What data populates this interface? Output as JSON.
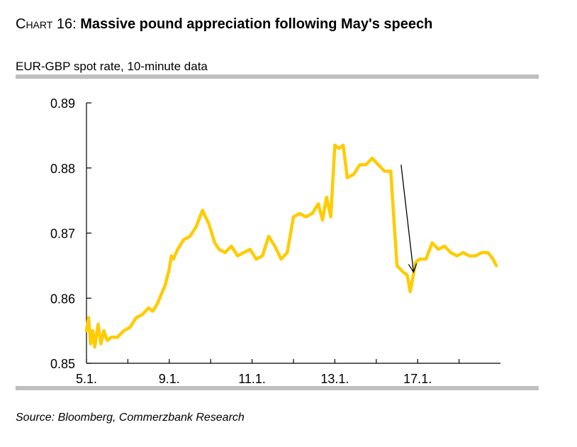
{
  "header": {
    "prefix": "Chart 16:",
    "title": "Massive pound appreciation following May's speech",
    "subtitle": "EUR-GBP spot rate, 10-minute data"
  },
  "footer": {
    "source": "Source: Bloomberg, Commerzbank Research"
  },
  "colors": {
    "series": "#FFCC00",
    "axis": "#000000",
    "rule": "#BFBFBF"
  },
  "chart_data": {
    "type": "line",
    "title": "Massive pound appreciation following May's speech",
    "subtitle": "EUR-GBP spot rate, 10-minute data",
    "xlabel": "",
    "ylabel": "",
    "ylim": [
      0.85,
      0.89
    ],
    "y_ticks": [
      0.85,
      0.86,
      0.87,
      0.88,
      0.89
    ],
    "y_tick_labels": [
      "0.85",
      "0.86",
      "0.87",
      "0.88",
      "0.89"
    ],
    "xlim": [
      0,
      10
    ],
    "x_ticks": [
      0,
      2,
      4,
      6,
      8
    ],
    "x_tick_labels": [
      "5.1.",
      "9.1.",
      "11.1.",
      "13.1.",
      "17.1."
    ],
    "grid": false,
    "legend": "none",
    "series": [
      {
        "name": "EUR-GBP",
        "x": [
          0,
          0.05,
          0.1,
          0.15,
          0.2,
          0.28,
          0.35,
          0.42,
          0.5,
          0.6,
          0.75,
          0.9,
          1.05,
          1.2,
          1.35,
          1.5,
          1.6,
          1.7,
          1.8,
          1.9,
          2.0,
          2.05,
          2.1,
          2.2,
          2.35,
          2.5,
          2.65,
          2.8,
          2.95,
          3.05,
          3.1,
          3.2,
          3.35,
          3.5,
          3.65,
          3.8,
          3.95,
          4.1,
          4.25,
          4.4,
          4.55,
          4.7,
          4.85,
          5.0,
          5.15,
          5.3,
          5.45,
          5.6,
          5.7,
          5.8,
          5.9,
          6.0,
          6.1,
          6.2,
          6.3,
          6.45,
          6.6,
          6.75,
          6.9,
          7.05,
          7.2,
          7.35,
          7.5,
          7.65,
          7.75,
          7.82,
          7.88,
          7.95,
          8.05,
          8.2,
          8.35,
          8.5,
          8.65,
          8.8,
          8.95,
          9.1,
          9.25,
          9.4,
          9.55,
          9.7,
          9.82,
          9.9
        ],
        "values": [
          0.855,
          0.857,
          0.853,
          0.855,
          0.8525,
          0.856,
          0.853,
          0.855,
          0.8535,
          0.854,
          0.854,
          0.855,
          0.8555,
          0.857,
          0.8575,
          0.8585,
          0.858,
          0.859,
          0.8605,
          0.862,
          0.8645,
          0.8665,
          0.866,
          0.8675,
          0.869,
          0.8695,
          0.871,
          0.8735,
          0.8715,
          0.8695,
          0.8685,
          0.8675,
          0.867,
          0.868,
          0.8665,
          0.867,
          0.8675,
          0.866,
          0.8665,
          0.8695,
          0.868,
          0.866,
          0.867,
          0.8725,
          0.873,
          0.8725,
          0.873,
          0.8745,
          0.872,
          0.8755,
          0.8725,
          0.8835,
          0.883,
          0.8835,
          0.8785,
          0.879,
          0.8805,
          0.8805,
          0.8815,
          0.8805,
          0.8795,
          0.8795,
          0.865,
          0.864,
          0.8635,
          0.861,
          0.863,
          0.8655,
          0.866,
          0.866,
          0.8685,
          0.8675,
          0.868,
          0.867,
          0.8665,
          0.867,
          0.8665,
          0.8665,
          0.867,
          0.867,
          0.866,
          0.865
        ]
      }
    ],
    "annotations": [
      {
        "type": "arrow",
        "from": [
          7.6,
          0.8805
        ],
        "to": [
          7.9,
          0.864
        ],
        "label": ""
      }
    ]
  }
}
